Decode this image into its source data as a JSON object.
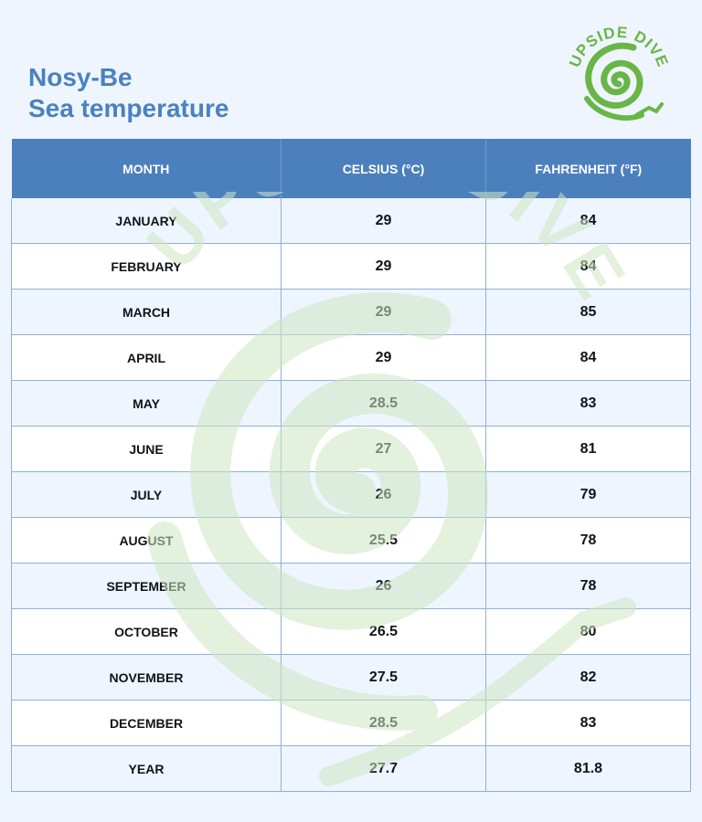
{
  "title": {
    "line1": "Nosy-Be",
    "line2": "Sea temperature"
  },
  "logo": {
    "text": "UPSIDE DIVE",
    "icon": "spiral-diver-icon",
    "color": "#6ab547"
  },
  "watermark": {
    "text": "UPSIDE DIVE",
    "icon": "spiral-diver-icon",
    "color": "#cfe6c3"
  },
  "colors": {
    "header_bg": "#4c80bd",
    "title": "#4a82bf",
    "row_alt": "#eef5fe"
  },
  "table": {
    "headers": [
      "MONTH",
      "CELSIUS (°C)",
      "FAHRENHEIT (°F)"
    ],
    "rows": [
      [
        "JANUARY",
        "29",
        "84"
      ],
      [
        "FEBRUARY",
        "29",
        "84"
      ],
      [
        "MARCH",
        "29",
        "85"
      ],
      [
        "APRIL",
        "29",
        "84"
      ],
      [
        "MAY",
        "28.5",
        "83"
      ],
      [
        "JUNE",
        "27",
        "81"
      ],
      [
        "JULY",
        "26",
        "79"
      ],
      [
        "AUGUST",
        "25.5",
        "78"
      ],
      [
        "SEPTEMBER",
        "26",
        "78"
      ],
      [
        "OCTOBER",
        "26.5",
        "80"
      ],
      [
        "NOVEMBER",
        "27.5",
        "82"
      ],
      [
        "DECEMBER",
        "28.5",
        "83"
      ],
      [
        "YEAR",
        "27.7",
        "81.8"
      ]
    ]
  }
}
